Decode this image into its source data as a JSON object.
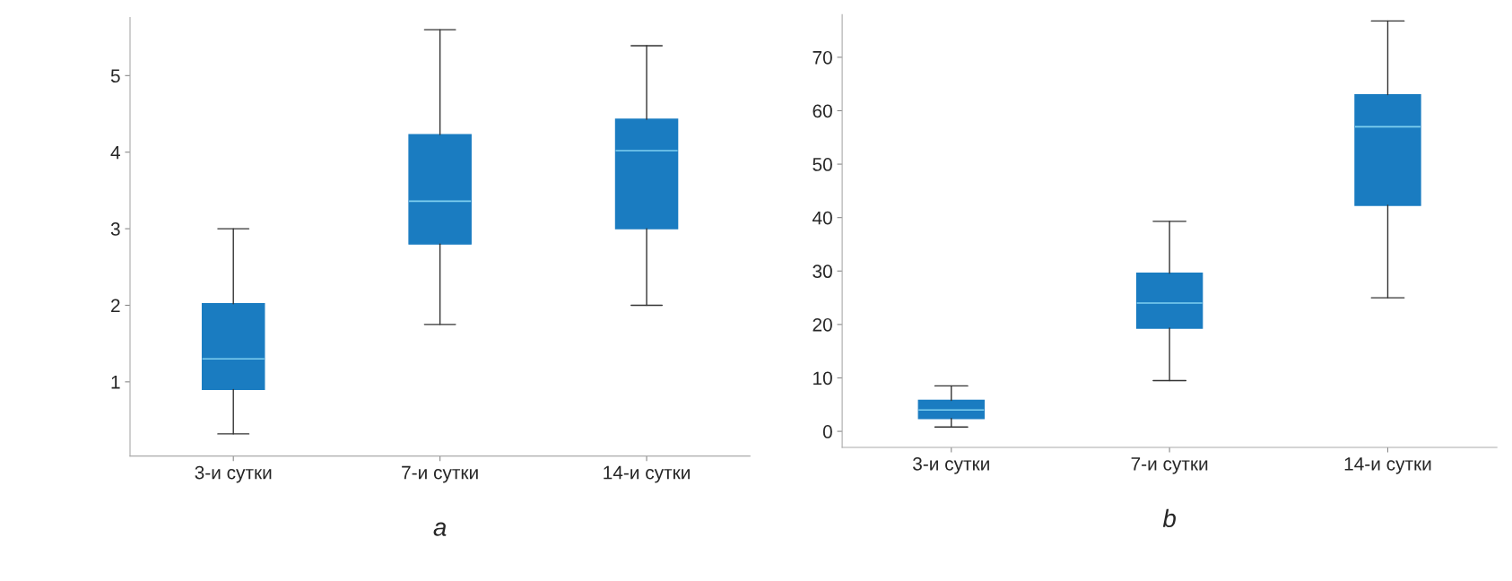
{
  "chart_data": [
    {
      "type": "box",
      "xlabel": "a",
      "categories": [
        "3-и сутки",
        "7-и сутки",
        "14-и сутки"
      ],
      "color": "#1a7cc1",
      "boxes": [
        {
          "low": 0.32,
          "q1": 0.9,
          "median": 1.3,
          "q3": 2.02,
          "high": 3.0
        },
        {
          "low": 1.75,
          "q1": 2.8,
          "median": 3.36,
          "q3": 4.23,
          "high": 5.6
        },
        {
          "low": 2.0,
          "q1": 3.0,
          "median": 4.02,
          "q3": 4.43,
          "high": 5.39
        }
      ],
      "ylim": [
        0.03,
        5.76
      ],
      "yticks": [
        1,
        2,
        3,
        4,
        5
      ],
      "grid": false,
      "legend": false
    },
    {
      "type": "box",
      "xlabel": "b",
      "categories": [
        "3-и сутки",
        "7-и сутки",
        "14-и сутки"
      ],
      "color": "#1a7cc1",
      "boxes": [
        {
          "low": 0.8,
          "q1": 2.4,
          "median": 4.0,
          "q3": 5.8,
          "high": 8.5
        },
        {
          "low": 9.5,
          "q1": 19.3,
          "median": 24,
          "q3": 29.6,
          "high": 39.3
        },
        {
          "low": 25,
          "q1": 42.3,
          "median": 57,
          "q3": 63,
          "high": 76.8
        }
      ],
      "ylim": [
        -3,
        78
      ],
      "yticks": [
        0,
        10,
        20,
        30,
        40,
        50,
        60,
        70
      ],
      "grid": false,
      "legend": false
    }
  ]
}
